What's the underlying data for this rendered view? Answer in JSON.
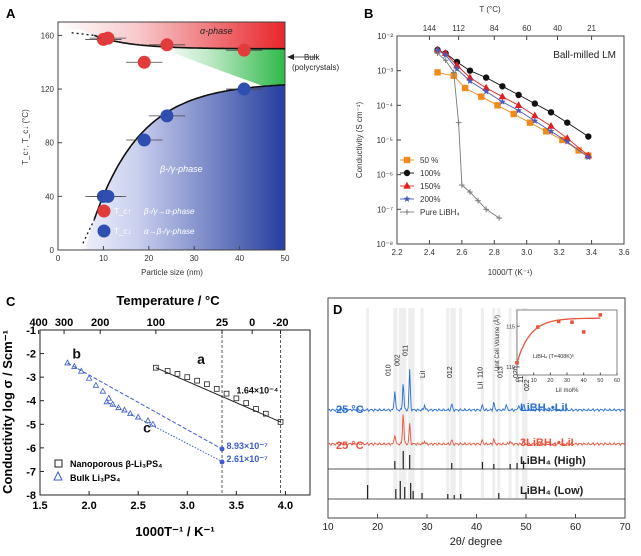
{
  "chart_data": [
    {
      "panel": "A",
      "type": "scatter",
      "xlabel": "Particle size (nm)",
      "ylabel": "T_c↑, T_c↓ (°C)",
      "xlim": [
        0,
        50
      ],
      "ylim": [
        0,
        170
      ],
      "xticks": [
        "0",
        "10",
        "20",
        "30",
        "40",
        "50"
      ],
      "yticks": [
        "0",
        "40",
        "80",
        "120",
        "160"
      ],
      "alpha_label": "α-phase",
      "beta_label": "β-/γ-phase",
      "bulk_label": "Bulk",
      "bulk_label2": "(polycrystals)",
      "legend": [
        {
          "symbol": "T_c↑",
          "desc": "β-/γ→α-phase",
          "color": "#e23b3b"
        },
        {
          "symbol": "T_c↓",
          "desc": "α→β-/γ-phase",
          "color": "#2f4fb0"
        }
      ],
      "series": [
        {
          "name": "T_c↑",
          "color": "#e23b3b",
          "x": [
            10,
            11,
            19,
            24,
            41
          ],
          "y": [
            157,
            158,
            140,
            153,
            149
          ]
        },
        {
          "name": "T_c↓",
          "color": "#2f4fb0",
          "x": [
            10,
            11,
            19,
            24,
            41
          ],
          "y": [
            40,
            40,
            82,
            100,
            120
          ]
        }
      ],
      "colors": {
        "alpha": "#e8262b",
        "beta": "#263e9e",
        "mid": "#2fb84a"
      }
    },
    {
      "panel": "B",
      "type": "line",
      "xlabel": "1000/T (K⁻¹)",
      "ylabel": "Conductivity (S cm⁻¹)",
      "top_label": "T (°C)",
      "title": "Ball-milled LM",
      "xlim": [
        2.2,
        3.6
      ],
      "ylim_log": [
        -8,
        -2
      ],
      "xticks": [
        "2.2",
        "2.4",
        "2.6",
        "2.8",
        "3.0",
        "3.2",
        "3.4",
        "3.6"
      ],
      "yticks": [
        "10⁻⁸",
        "10⁻⁷",
        "10⁻⁶",
        "10⁻⁵",
        "10⁻⁴",
        "10⁻³",
        "10⁻²"
      ],
      "top_ticks": [
        {
          "label": "144",
          "x": 2.4
        },
        {
          "label": "112",
          "x": 2.58
        },
        {
          "label": "84",
          "x": 2.8
        },
        {
          "label": "60",
          "x": 3.0
        },
        {
          "label": "40",
          "x": 3.19
        },
        {
          "label": "21",
          "x": 3.4
        }
      ],
      "series": [
        {
          "name": "50 %",
          "color": "#f08a1c",
          "marker": "square",
          "x": [
            2.45,
            2.55,
            2.62,
            2.72,
            2.82,
            2.92,
            3.02,
            3.12,
            3.22,
            3.32,
            3.38
          ],
          "y": [
            -3.05,
            -3.15,
            -3.5,
            -3.75,
            -4.0,
            -4.25,
            -4.5,
            -4.75,
            -5.0,
            -5.3,
            -5.45
          ]
        },
        {
          "name": "100%",
          "color": "#111111",
          "marker": "circle",
          "x": [
            2.45,
            2.5,
            2.57,
            2.65,
            2.75,
            2.85,
            2.95,
            3.05,
            3.15,
            3.25,
            3.38
          ],
          "y": [
            -2.4,
            -2.5,
            -2.75,
            -3.0,
            -3.2,
            -3.45,
            -3.7,
            -3.95,
            -4.2,
            -4.5,
            -4.9
          ]
        },
        {
          "name": "150%",
          "color": "#e02020",
          "marker": "triangle",
          "x": [
            2.45,
            2.5,
            2.57,
            2.65,
            2.75,
            2.85,
            2.95,
            3.05,
            3.15,
            3.25,
            3.38
          ],
          "y": [
            -2.4,
            -2.5,
            -2.85,
            -3.2,
            -3.5,
            -3.75,
            -4.0,
            -4.3,
            -4.6,
            -4.95,
            -5.45
          ]
        },
        {
          "name": "200%",
          "color": "#4a5ab8",
          "marker": "star",
          "x": [
            2.45,
            2.5,
            2.57,
            2.65,
            2.75,
            2.85,
            2.95,
            3.05,
            3.15,
            3.25,
            3.38
          ],
          "y": [
            -2.4,
            -2.55,
            -2.95,
            -3.3,
            -3.6,
            -3.9,
            -4.15,
            -4.45,
            -4.75,
            -5.05,
            -5.5
          ]
        },
        {
          "name": "Pure LiBH₄",
          "color": "#7a7a7a",
          "marker": "plus",
          "x": [
            2.45,
            2.5,
            2.55,
            2.58,
            2.6,
            2.65,
            2.7,
            2.75,
            2.83
          ],
          "y": [
            -2.5,
            -2.7,
            -3.05,
            -4.5,
            -6.3,
            -6.5,
            -6.75,
            -7.0,
            -7.25
          ]
        }
      ]
    },
    {
      "panel": "C",
      "type": "line",
      "xlabel": "1000T⁻¹ / K⁻¹",
      "ylabel": "Conductivity log σ / Scm⁻¹",
      "top_label": "Temperature / °C",
      "xlim": [
        1.5,
        4.25
      ],
      "ylim": [
        -8,
        -1
      ],
      "xticks": [
        "1.5",
        "2.0",
        "2.5",
        "3.0",
        "3.5",
        "4.0"
      ],
      "yticks": [
        "-8",
        "-7",
        "-6",
        "-5",
        "-4",
        "-3",
        "-2",
        "-1"
      ],
      "top_ticks": [
        {
          "label": "400",
          "x": 1.486
        },
        {
          "label": "300",
          "x": 1.745
        },
        {
          "label": "200",
          "x": 2.113
        },
        {
          "label": "100",
          "x": 2.68
        },
        {
          "label": "25",
          "x": 3.354
        },
        {
          "label": "0",
          "x": 3.661
        },
        {
          "label": "-20",
          "x": 3.95
        }
      ],
      "vlines": [
        3.354,
        3.95
      ],
      "annotations": [
        {
          "text": "a",
          "x": 3.1,
          "y": -2.45
        },
        {
          "text": "b",
          "x": 1.83,
          "y": -2.2
        },
        {
          "text": "c",
          "x": 2.55,
          "y": -5.35
        },
        {
          "text": "1.64×10⁻⁴",
          "x": 3.5,
          "y": -3.7
        },
        {
          "text": "8.93×10⁻⁷",
          "x": 3.4,
          "y": -6.05
        },
        {
          "text": "2.61×10⁻⁷",
          "x": 3.4,
          "y": -6.6
        }
      ],
      "legend": [
        "Nanoporous β-Li₃PS₄",
        "Bulk Li₃PS₄"
      ],
      "series": [
        {
          "name": "Nanoporous β-Li₃PS₄",
          "color": "#222222",
          "marker": "square",
          "x": [
            2.68,
            2.8,
            2.9,
            3.0,
            3.1,
            3.2,
            3.3,
            3.4,
            3.5,
            3.6,
            3.7,
            3.8,
            3.95
          ],
          "y": [
            -2.6,
            -2.74,
            -2.86,
            -3.0,
            -3.15,
            -3.3,
            -3.5,
            -3.7,
            -3.9,
            -4.1,
            -4.35,
            -4.55,
            -4.9
          ]
        },
        {
          "name": "Bulk Li₃PS₄ b",
          "color": "#3b5bd0",
          "marker": "triangle",
          "x": [
            1.78,
            1.85,
            1.92,
            2.0,
            2.07,
            2.14,
            2.2
          ],
          "y": [
            -2.4,
            -2.55,
            -2.75,
            -3.05,
            -3.35,
            -3.6,
            -3.9
          ]
        },
        {
          "name": "Bulk Li₃PS₄ c",
          "color": "#3b5bd0",
          "marker": "triangle",
          "x": [
            2.18,
            2.24,
            2.3,
            2.36,
            2.42,
            2.5,
            2.6,
            2.65
          ],
          "y": [
            -4.05,
            -4.15,
            -4.3,
            -4.4,
            -4.55,
            -4.7,
            -4.85,
            -5.0
          ]
        }
      ]
    },
    {
      "panel": "D",
      "type": "line",
      "xlabel": "2θ/ degree",
      "xlim": [
        10,
        70
      ],
      "xticks": [
        "10",
        "20",
        "30",
        "40",
        "50",
        "60",
        "70"
      ],
      "series_labels": [
        {
          "temp": "25 °C",
          "name": "LiBH₄•LiI",
          "color": "#2a6fd6"
        },
        {
          "temp": "25 °C",
          "name": "3LiBH₄•LiI",
          "color": "#e8553f"
        },
        {
          "name": "LiBH₄ (High)",
          "color": "#222222"
        },
        {
          "name": "LiBH₄ (Low)",
          "color": "#222222"
        }
      ],
      "peak_labels": [
        "010",
        "002",
        "011",
        "LiI",
        "012",
        "110",
        "LiI",
        "013",
        "020",
        "112",
        "022"
      ],
      "peaks_high": [
        23.5,
        25.2,
        26.5,
        35.0,
        41.2,
        43.5,
        46.8,
        48.2,
        49.5
      ],
      "peaks_low": [
        18.0,
        23.7,
        24.6,
        25.5,
        26.7,
        27.2,
        29.0,
        34.2,
        35.5,
        36.8,
        44.5,
        50.0
      ],
      "inset": {
        "xlabel": "LiI mol%",
        "ylabel": "Unit Cell Volume (Å³)",
        "xlim": [
          0,
          60
        ],
        "ylim": [
          109,
          117
        ],
        "xticks": [
          "0",
          "10",
          "20",
          "30",
          "40",
          "50",
          "60"
        ],
        "yticks": [
          "110",
          "115"
        ],
        "note": "LiBH₄ (T=408K)⁶",
        "x": [
          0,
          12.5,
          25,
          33,
          40,
          50
        ],
        "y": [
          110.5,
          114.9,
          115.6,
          115.5,
          114.3,
          116.4
        ]
      }
    }
  ]
}
